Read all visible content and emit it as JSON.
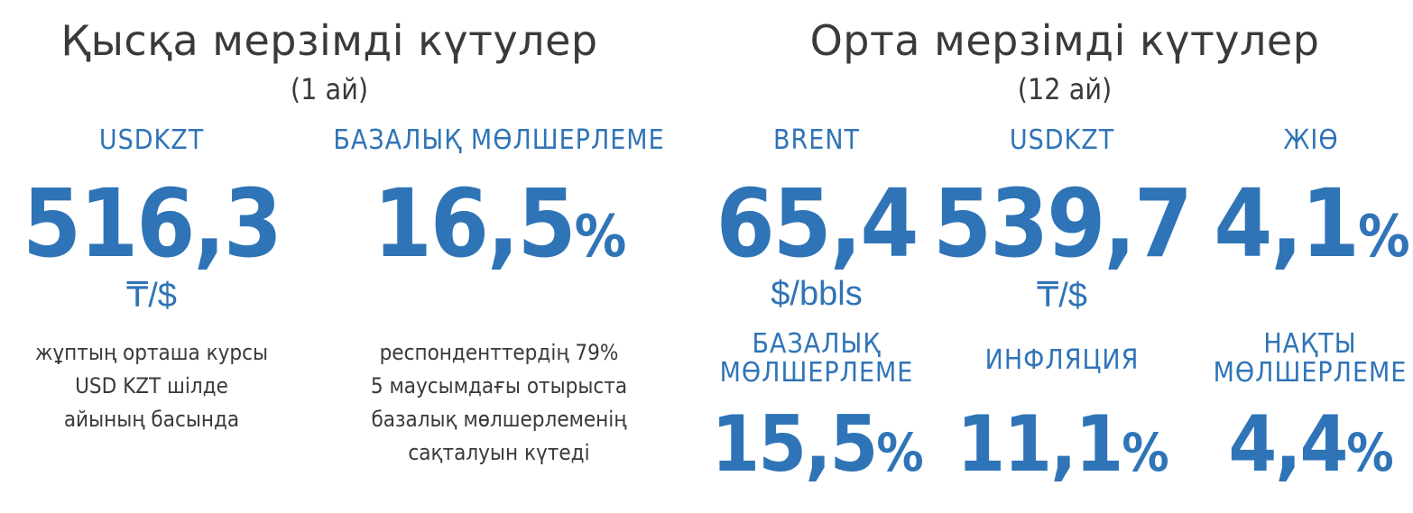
{
  "short_term": {
    "title": "Қысқа мерзімді күтулер",
    "subtitle": "(1 ай)",
    "usdkzt": {
      "label": "USDKZT",
      "value": "516,3",
      "unit": "₸/$",
      "description": [
        "жұптың орташа курсы",
        "USD KZT шілде",
        "айының басында"
      ]
    },
    "base_rate": {
      "label": "БАЗАЛЫҚ МӨЛШЕРЛЕМЕ",
      "value": "16,5",
      "percent": "%",
      "description": [
        "респонденттердің 79%",
        "5 маусымдағы отырыста",
        "базалық мөлшерлеменің",
        "сақталуын күтеді"
      ]
    }
  },
  "medium_term": {
    "title": "Орта мерзімді күтулер",
    "subtitle": "(12 ай)",
    "brent": {
      "label": "BRENT",
      "value": "65,4",
      "unit": "$/bbls"
    },
    "usdkzt": {
      "label": "USDKZT",
      "value": "539,7",
      "unit": "₸/$"
    },
    "gdp": {
      "label": "ЖІӨ",
      "value": "4,1",
      "percent": "%"
    },
    "base_rate": {
      "label_line1": "БАЗАЛЫҚ",
      "label_line2": "МӨЛШЕРЛЕМЕ",
      "value": "15,5",
      "percent": "%"
    },
    "inflation": {
      "label": "ИНФЛЯЦИЯ",
      "value": "11,1",
      "percent": "%"
    },
    "real_rate": {
      "label_line1": "НАҚТЫ",
      "label_line2": "МӨЛШЕРЛЕМЕ",
      "value": "4,4",
      "percent": "%"
    }
  },
  "colors": {
    "accent": "#2f74b7",
    "text": "#3a3a3a",
    "background": "#ffffff"
  }
}
